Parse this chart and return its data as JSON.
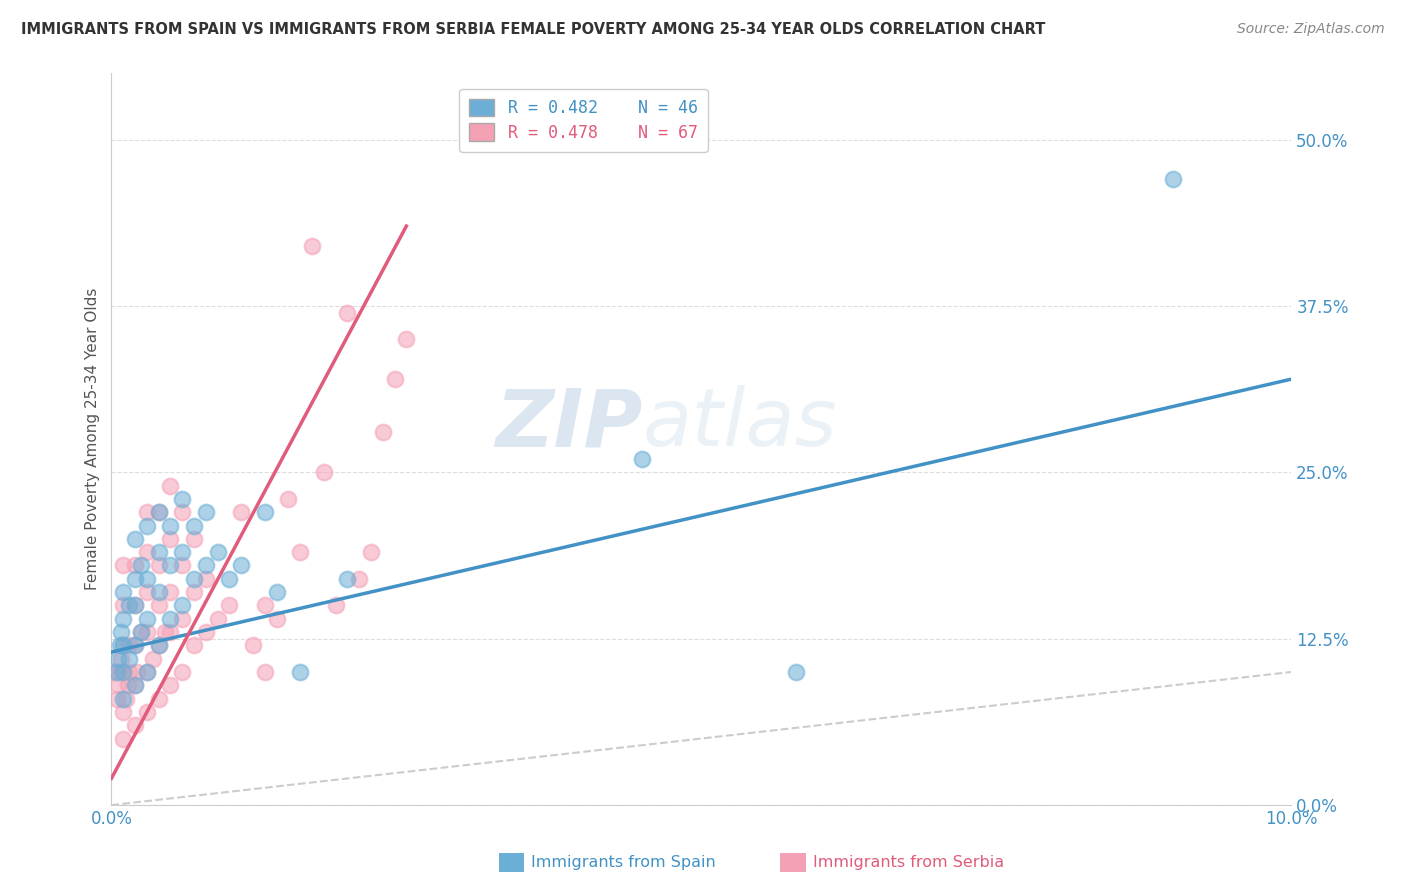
{
  "title": "IMMIGRANTS FROM SPAIN VS IMMIGRANTS FROM SERBIA FEMALE POVERTY AMONG 25-34 YEAR OLDS CORRELATION CHART",
  "source": "Source: ZipAtlas.com",
  "ylabel": "Female Poverty Among 25-34 Year Olds",
  "xlim": [
    0.0,
    0.1
  ],
  "ylim": [
    0.0,
    0.55
  ],
  "yticks": [
    0.0,
    0.125,
    0.25,
    0.375,
    0.5
  ],
  "ytick_labels": [
    "0.0%",
    "12.5%",
    "25.0%",
    "37.5%",
    "50.0%"
  ],
  "xticks": [
    0.0,
    0.02,
    0.04,
    0.06,
    0.08,
    0.1
  ],
  "xtick_labels": [
    "0.0%",
    "",
    "",
    "",
    "",
    "10.0%"
  ],
  "spain_R": 0.482,
  "spain_N": 46,
  "serbia_R": 0.478,
  "serbia_N": 67,
  "spain_color": "#6baed6",
  "serbia_color": "#f4a0b5",
  "spain_line_color": "#4292c6",
  "serbia_line_color": "#e05c7a",
  "diagonal_color": "#cccccc",
  "watermark_zip": "ZIP",
  "watermark_atlas": "atlas",
  "spain_x": [
    0.0005,
    0.0006,
    0.0007,
    0.0008,
    0.001,
    0.001,
    0.001,
    0.001,
    0.001,
    0.0015,
    0.0015,
    0.002,
    0.002,
    0.002,
    0.002,
    0.002,
    0.0025,
    0.0025,
    0.003,
    0.003,
    0.003,
    0.003,
    0.004,
    0.004,
    0.004,
    0.004,
    0.005,
    0.005,
    0.005,
    0.006,
    0.006,
    0.006,
    0.007,
    0.007,
    0.008,
    0.008,
    0.009,
    0.01,
    0.011,
    0.013,
    0.014,
    0.016,
    0.02,
    0.045,
    0.058,
    0.09
  ],
  "spain_y": [
    0.1,
    0.11,
    0.12,
    0.13,
    0.08,
    0.1,
    0.12,
    0.14,
    0.16,
    0.11,
    0.15,
    0.09,
    0.12,
    0.15,
    0.17,
    0.2,
    0.13,
    0.18,
    0.1,
    0.14,
    0.17,
    0.21,
    0.12,
    0.16,
    0.19,
    0.22,
    0.14,
    0.18,
    0.21,
    0.15,
    0.19,
    0.23,
    0.17,
    0.21,
    0.18,
    0.22,
    0.19,
    0.17,
    0.18,
    0.22,
    0.16,
    0.1,
    0.17,
    0.26,
    0.1,
    0.47
  ],
  "serbia_x": [
    0.0003,
    0.0005,
    0.0006,
    0.0007,
    0.0008,
    0.001,
    0.001,
    0.001,
    0.001,
    0.001,
    0.001,
    0.0012,
    0.0014,
    0.0015,
    0.0015,
    0.002,
    0.002,
    0.002,
    0.002,
    0.002,
    0.0022,
    0.0025,
    0.003,
    0.003,
    0.003,
    0.003,
    0.003,
    0.003,
    0.0035,
    0.004,
    0.004,
    0.004,
    0.004,
    0.004,
    0.0045,
    0.005,
    0.005,
    0.005,
    0.005,
    0.005,
    0.006,
    0.006,
    0.006,
    0.006,
    0.007,
    0.007,
    0.007,
    0.008,
    0.008,
    0.009,
    0.01,
    0.011,
    0.012,
    0.013,
    0.013,
    0.014,
    0.015,
    0.016,
    0.017,
    0.018,
    0.019,
    0.02,
    0.021,
    0.022,
    0.023,
    0.024,
    0.025
  ],
  "serbia_y": [
    0.1,
    0.08,
    0.09,
    0.1,
    0.11,
    0.05,
    0.07,
    0.1,
    0.12,
    0.15,
    0.18,
    0.08,
    0.09,
    0.1,
    0.12,
    0.06,
    0.09,
    0.12,
    0.15,
    0.18,
    0.1,
    0.13,
    0.07,
    0.1,
    0.13,
    0.16,
    0.19,
    0.22,
    0.11,
    0.08,
    0.12,
    0.15,
    0.18,
    0.22,
    0.13,
    0.09,
    0.13,
    0.16,
    0.2,
    0.24,
    0.1,
    0.14,
    0.18,
    0.22,
    0.12,
    0.16,
    0.2,
    0.13,
    0.17,
    0.14,
    0.15,
    0.22,
    0.12,
    0.1,
    0.15,
    0.14,
    0.23,
    0.19,
    0.42,
    0.25,
    0.15,
    0.37,
    0.17,
    0.19,
    0.28,
    0.32,
    0.35
  ],
  "spain_line_x0": 0.0,
  "spain_line_y0": 0.115,
  "spain_line_x1": 0.1,
  "spain_line_y1": 0.32,
  "serbia_line_x0": 0.0,
  "serbia_line_y0": 0.02,
  "serbia_line_x1": 0.025,
  "serbia_line_y1": 0.435
}
